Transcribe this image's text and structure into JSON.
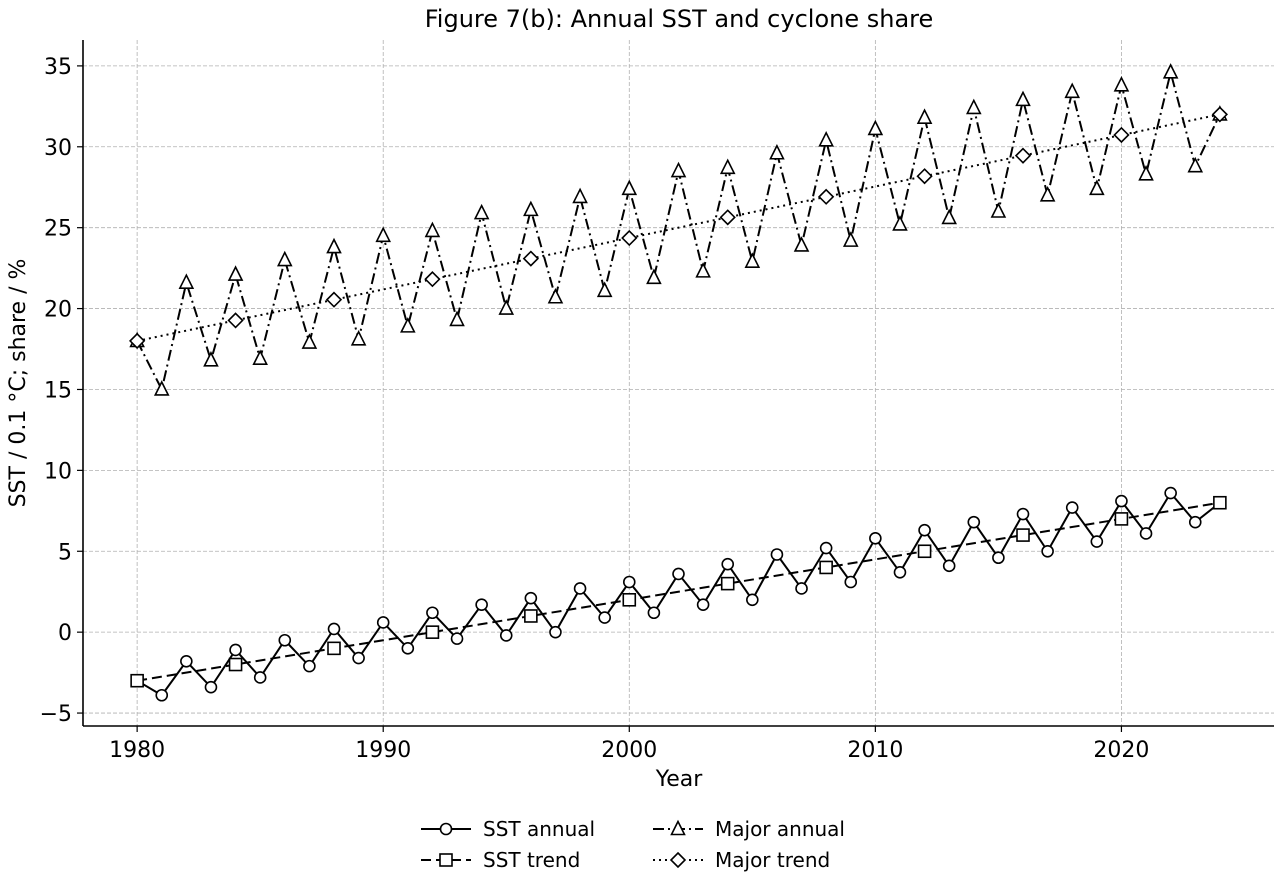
{
  "chart_data": {
    "type": "line",
    "title": "Figure 7(b): Annual SST and cyclone share",
    "xlabel": "Year",
    "ylabel": "SST / 0.1 °C; share / %",
    "xlim": [
      1977.8,
      2026.2
    ],
    "ylim": [
      -5.8,
      36.6
    ],
    "xticks": [
      1980,
      1990,
      2000,
      2010,
      2020
    ],
    "yticks": [
      -5,
      0,
      5,
      10,
      15,
      20,
      25,
      30,
      35
    ],
    "grid": true,
    "legend_position": "bottom-center",
    "series": [
      {
        "name": "SST annual",
        "line": "solid",
        "marker": "circle",
        "x": [
          1980,
          1981,
          1982,
          1983,
          1984,
          1985,
          1986,
          1987,
          1988,
          1989,
          1990,
          1991,
          1992,
          1993,
          1994,
          1995,
          1996,
          1997,
          1998,
          1999,
          2000,
          2001,
          2002,
          2003,
          2004,
          2005,
          2006,
          2007,
          2008,
          2009,
          2010,
          2011,
          2012,
          2013,
          2014,
          2015,
          2016,
          2017,
          2018,
          2019,
          2020,
          2021,
          2022,
          2023,
          2024
        ],
        "y": [
          -3.0,
          -3.9,
          -1.8,
          -3.4,
          -1.1,
          -2.8,
          -0.5,
          -2.1,
          0.2,
          -1.6,
          0.6,
          -1.0,
          1.2,
          -0.4,
          1.7,
          -0.2,
          2.1,
          0.0,
          2.7,
          0.9,
          3.1,
          1.2,
          3.6,
          1.7,
          4.2,
          2.0,
          4.8,
          2.7,
          5.2,
          3.1,
          5.8,
          3.7,
          6.3,
          4.1,
          6.8,
          4.6,
          7.3,
          5.0,
          7.7,
          5.6,
          8.1,
          6.1,
          8.6,
          6.8,
          8.0
        ]
      },
      {
        "name": "SST trend",
        "line": "dashed",
        "marker": "square",
        "x": [
          1980,
          2024
        ],
        "y": [
          -3.0,
          8.0
        ],
        "marker_x": [
          1980,
          1984,
          1988,
          1992,
          1996,
          2000,
          2004,
          2008,
          2012,
          2016,
          2020,
          2024
        ],
        "marker_y": [
          -3.0,
          -2.0,
          -1.0,
          0.0,
          1.0,
          2.0,
          3.0,
          4.0,
          5.0,
          6.0,
          7.0,
          8.0
        ]
      },
      {
        "name": "Major annual",
        "line": "dashdot",
        "marker": "triangle",
        "x": [
          1980,
          1981,
          1982,
          1983,
          1984,
          1985,
          1986,
          1987,
          1988,
          1989,
          1990,
          1991,
          1992,
          1993,
          1994,
          1995,
          1996,
          1997,
          1998,
          1999,
          2000,
          2001,
          2002,
          2003,
          2004,
          2005,
          2006,
          2007,
          2008,
          2009,
          2010,
          2011,
          2012,
          2013,
          2014,
          2015,
          2016,
          2017,
          2018,
          2019,
          2020,
          2021,
          2022,
          2023,
          2024
        ],
        "y": [
          18.0,
          15.0,
          21.6,
          16.8,
          22.1,
          16.9,
          23.0,
          17.9,
          23.8,
          18.1,
          24.5,
          18.9,
          24.8,
          19.3,
          25.9,
          20.0,
          26.1,
          20.7,
          26.9,
          21.1,
          27.4,
          21.9,
          28.5,
          22.3,
          28.7,
          22.9,
          29.6,
          23.9,
          30.4,
          24.2,
          31.1,
          25.2,
          31.8,
          25.6,
          32.4,
          26.0,
          32.9,
          27.0,
          33.4,
          27.4,
          33.8,
          28.3,
          34.6,
          28.8,
          32.0
        ]
      },
      {
        "name": "Major trend",
        "line": "dotted",
        "marker": "diamond",
        "x": [
          1980,
          2024
        ],
        "y": [
          18.0,
          32.0
        ],
        "marker_x": [
          1980,
          1984,
          1988,
          1992,
          1996,
          2000,
          2004,
          2008,
          2012,
          2016,
          2020,
          2024
        ],
        "marker_y": [
          18.0,
          19.27,
          20.55,
          21.82,
          23.09,
          24.36,
          25.64,
          26.91,
          28.18,
          29.45,
          30.73,
          32.0
        ]
      }
    ]
  }
}
